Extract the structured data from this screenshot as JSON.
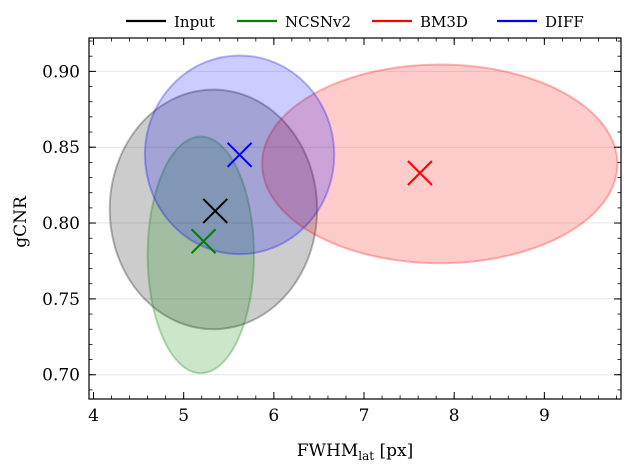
{
  "chart_data": {
    "type": "scatter",
    "title": "",
    "xlabel": "FWHM",
    "xlabel_subscript": "lat",
    "xlabel_unit": " [px]",
    "ylabel": "gCNR",
    "xlim": [
      3.95,
      9.85
    ],
    "ylim": [
      0.684,
      0.922
    ],
    "xticks": [
      4,
      5,
      6,
      7,
      8,
      9
    ],
    "yticks": [
      0.7,
      0.75,
      0.8,
      0.85,
      0.9
    ],
    "xtick_labels": [
      "4",
      "5",
      "6",
      "7",
      "8",
      "9"
    ],
    "ytick_labels": [
      "0.70",
      "0.75",
      "0.80",
      "0.85",
      "0.90"
    ],
    "grid": true,
    "legend_position": "top, outside",
    "series": [
      {
        "name": "Input",
        "color": "#000000",
        "mean": {
          "x": 5.35,
          "y": 0.808
        },
        "ellipse": {
          "cx": 5.33,
          "cy": 0.809,
          "rx": 1.15,
          "ry": 0.079
        }
      },
      {
        "name": "NCSNv2",
        "color": "#008000",
        "mean": {
          "x": 5.22,
          "y": 0.788
        },
        "ellipse": {
          "cx": 5.19,
          "cy": 0.779,
          "rx": 0.59,
          "ry": 0.078
        }
      },
      {
        "name": "BM3D",
        "color": "#ff0000",
        "mean": {
          "x": 7.62,
          "y": 0.833
        },
        "ellipse": {
          "cx": 7.84,
          "cy": 0.839,
          "rx": 1.97,
          "ry": 0.0655
        }
      },
      {
        "name": "DIFF",
        "color": "#0000ff",
        "mean": {
          "x": 5.62,
          "y": 0.845
        },
        "ellipse": {
          "cx": 5.62,
          "cy": 0.845,
          "rx": 1.05,
          "ry": 0.0655
        }
      }
    ]
  }
}
